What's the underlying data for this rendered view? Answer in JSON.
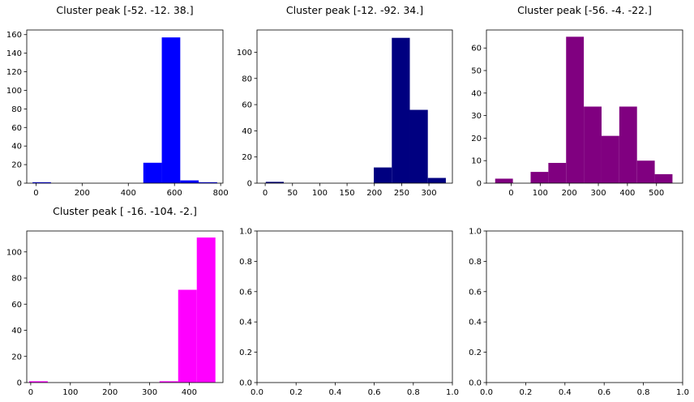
{
  "chart_data": [
    {
      "type": "bar",
      "title": "Cluster peak [-52. -12.  38.]",
      "color": "#0000ff",
      "xlim": [
        -40,
        810
      ],
      "ylim": [
        0,
        165
      ],
      "xticks": [
        0,
        200,
        400,
        600,
        800
      ],
      "yticks": [
        0,
        20,
        40,
        60,
        80,
        100,
        120,
        140,
        160
      ],
      "bins": [
        {
          "x0": -15,
          "x1": 65,
          "value": 1
        },
        {
          "x0": 65,
          "x1": 145,
          "value": 0
        },
        {
          "x0": 145,
          "x1": 225,
          "value": 0
        },
        {
          "x0": 225,
          "x1": 305,
          "value": 0
        },
        {
          "x0": 305,
          "x1": 385,
          "value": 0
        },
        {
          "x0": 385,
          "x1": 465,
          "value": 0
        },
        {
          "x0": 465,
          "x1": 545,
          "value": 22
        },
        {
          "x0": 545,
          "x1": 625,
          "value": 157
        },
        {
          "x0": 625,
          "x1": 705,
          "value": 3
        },
        {
          "x0": 705,
          "x1": 785,
          "value": 1
        }
      ]
    },
    {
      "type": "bar",
      "title": "Cluster peak [-12. -92.  34.]",
      "color": "#000080",
      "xlim": [
        -15,
        343
      ],
      "ylim": [
        0,
        117
      ],
      "xticks": [
        0,
        50,
        100,
        150,
        200,
        250,
        300
      ],
      "yticks": [
        0,
        20,
        40,
        60,
        80,
        100
      ],
      "bins": [
        {
          "x0": 1,
          "x1": 34,
          "value": 1
        },
        {
          "x0": 34,
          "x1": 67,
          "value": 0
        },
        {
          "x0": 67,
          "x1": 100,
          "value": 0
        },
        {
          "x0": 100,
          "x1": 133,
          "value": 0
        },
        {
          "x0": 133,
          "x1": 166,
          "value": 0
        },
        {
          "x0": 166,
          "x1": 199,
          "value": 0
        },
        {
          "x0": 199,
          "x1": 232,
          "value": 12
        },
        {
          "x0": 232,
          "x1": 265,
          "value": 111
        },
        {
          "x0": 265,
          "x1": 298,
          "value": 56
        },
        {
          "x0": 298,
          "x1": 331,
          "value": 4
        }
      ]
    },
    {
      "type": "bar",
      "title": "Cluster peak [-56.  -4. -22.]",
      "color": "#800080",
      "xlim": [
        -85,
        590
      ],
      "ylim": [
        0,
        68
      ],
      "xticks": [
        0,
        100,
        200,
        300,
        400,
        500
      ],
      "yticks": [
        0,
        10,
        20,
        30,
        40,
        50,
        60
      ],
      "bins": [
        {
          "x0": -55,
          "x1": 6,
          "value": 2
        },
        {
          "x0": 6,
          "x1": 67,
          "value": 0
        },
        {
          "x0": 67,
          "x1": 128,
          "value": 5
        },
        {
          "x0": 128,
          "x1": 189,
          "value": 9
        },
        {
          "x0": 189,
          "x1": 250,
          "value": 65
        },
        {
          "x0": 250,
          "x1": 311,
          "value": 34
        },
        {
          "x0": 311,
          "x1": 372,
          "value": 21
        },
        {
          "x0": 372,
          "x1": 433,
          "value": 34
        },
        {
          "x0": 433,
          "x1": 494,
          "value": 10
        },
        {
          "x0": 494,
          "x1": 555,
          "value": 4
        }
      ]
    },
    {
      "type": "bar",
      "title": "Cluster peak [ -16. -104.   -2.]",
      "color": "#ff00ff",
      "xlim": [
        -10,
        485
      ],
      "ylim": [
        0,
        116
      ],
      "xticks": [
        0,
        100,
        200,
        300,
        400
      ],
      "yticks": [
        0,
        20,
        40,
        60,
        80,
        100
      ],
      "bins": [
        {
          "x0": -4,
          "x1": 43,
          "value": 1
        },
        {
          "x0": 43,
          "x1": 90,
          "value": 0
        },
        {
          "x0": 90,
          "x1": 137,
          "value": 0
        },
        {
          "x0": 137,
          "x1": 184,
          "value": 0
        },
        {
          "x0": 184,
          "x1": 231,
          "value": 0
        },
        {
          "x0": 231,
          "x1": 278,
          "value": 0
        },
        {
          "x0": 278,
          "x1": 325,
          "value": 0
        },
        {
          "x0": 325,
          "x1": 372,
          "value": 1
        },
        {
          "x0": 372,
          "x1": 419,
          "value": 71
        },
        {
          "x0": 419,
          "x1": 466,
          "value": 111
        }
      ]
    },
    {
      "type": "bar",
      "title": "",
      "empty": true,
      "xlim": [
        0,
        1
      ],
      "ylim": [
        0,
        1
      ],
      "xticks": [
        0.0,
        0.2,
        0.4,
        0.6,
        0.8,
        1.0
      ],
      "yticks": [
        0.0,
        0.2,
        0.4,
        0.6,
        0.8,
        1.0
      ],
      "bins": []
    },
    {
      "type": "bar",
      "title": "",
      "empty": true,
      "xlim": [
        0,
        1
      ],
      "ylim": [
        0,
        1
      ],
      "xticks": [
        0.0,
        0.2,
        0.4,
        0.6,
        0.8,
        1.0
      ],
      "yticks": [
        0.0,
        0.2,
        0.4,
        0.6,
        0.8,
        1.0
      ],
      "bins": []
    }
  ]
}
